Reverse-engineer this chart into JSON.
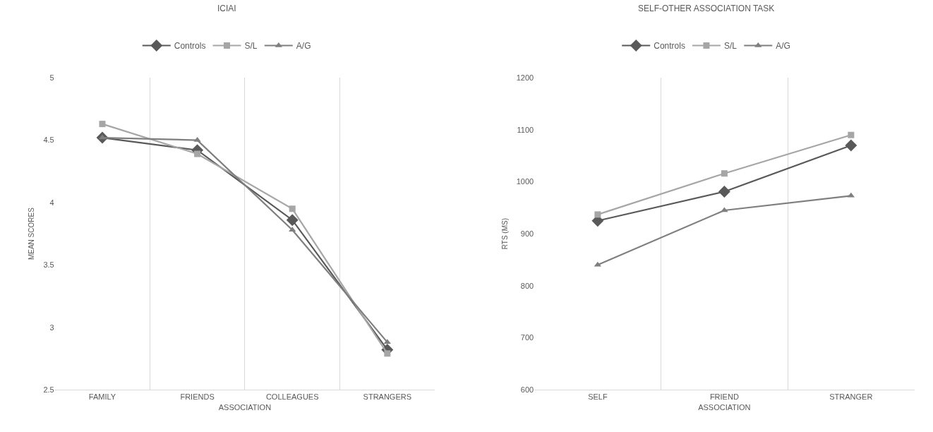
{
  "chart_data": [
    {
      "type": "line",
      "title": "ICIAI",
      "xlabel": "ASSOCIATION",
      "ylabel": "MEAN SCORES",
      "categories": [
        "FAMILY",
        "FRIENDS",
        "COLLEAGUES",
        "STRANGERS"
      ],
      "series": [
        {
          "name": "Controls",
          "color": "#595959",
          "marker": "diamond",
          "values": [
            4.52,
            4.42,
            3.86,
            2.82
          ]
        },
        {
          "name": "S/L",
          "color": "#a6a6a6",
          "marker": "square",
          "values": [
            4.63,
            4.39,
            3.95,
            2.79
          ]
        },
        {
          "name": "A/G",
          "color": "#7f7f7f",
          "marker": "triangle",
          "values": [
            4.52,
            4.5,
            3.78,
            2.88
          ]
        }
      ],
      "ylim": [
        2.5,
        5
      ],
      "yticks": [
        2.5,
        3,
        3.5,
        4,
        4.5,
        5
      ],
      "grid": "x",
      "legend": "top"
    },
    {
      "type": "line",
      "title": "SELF-OTHER ASSOCIATION TASK",
      "xlabel": "ASSOCIATION",
      "ylabel": "RTS (MS)",
      "categories": [
        "SELF",
        "FRIEND",
        "STRANGER"
      ],
      "series": [
        {
          "name": "Controls",
          "color": "#595959",
          "marker": "diamond",
          "values": [
            925,
            981,
            1070
          ]
        },
        {
          "name": "S/L",
          "color": "#a6a6a6",
          "marker": "square",
          "values": [
            937,
            1016,
            1090
          ]
        },
        {
          "name": "A/G",
          "color": "#7f7f7f",
          "marker": "triangle",
          "values": [
            840,
            945,
            973
          ]
        }
      ],
      "ylim": [
        600,
        1200
      ],
      "yticks": [
        600,
        700,
        800,
        900,
        1000,
        1100,
        1200
      ],
      "grid": "x",
      "legend": "top"
    }
  ]
}
